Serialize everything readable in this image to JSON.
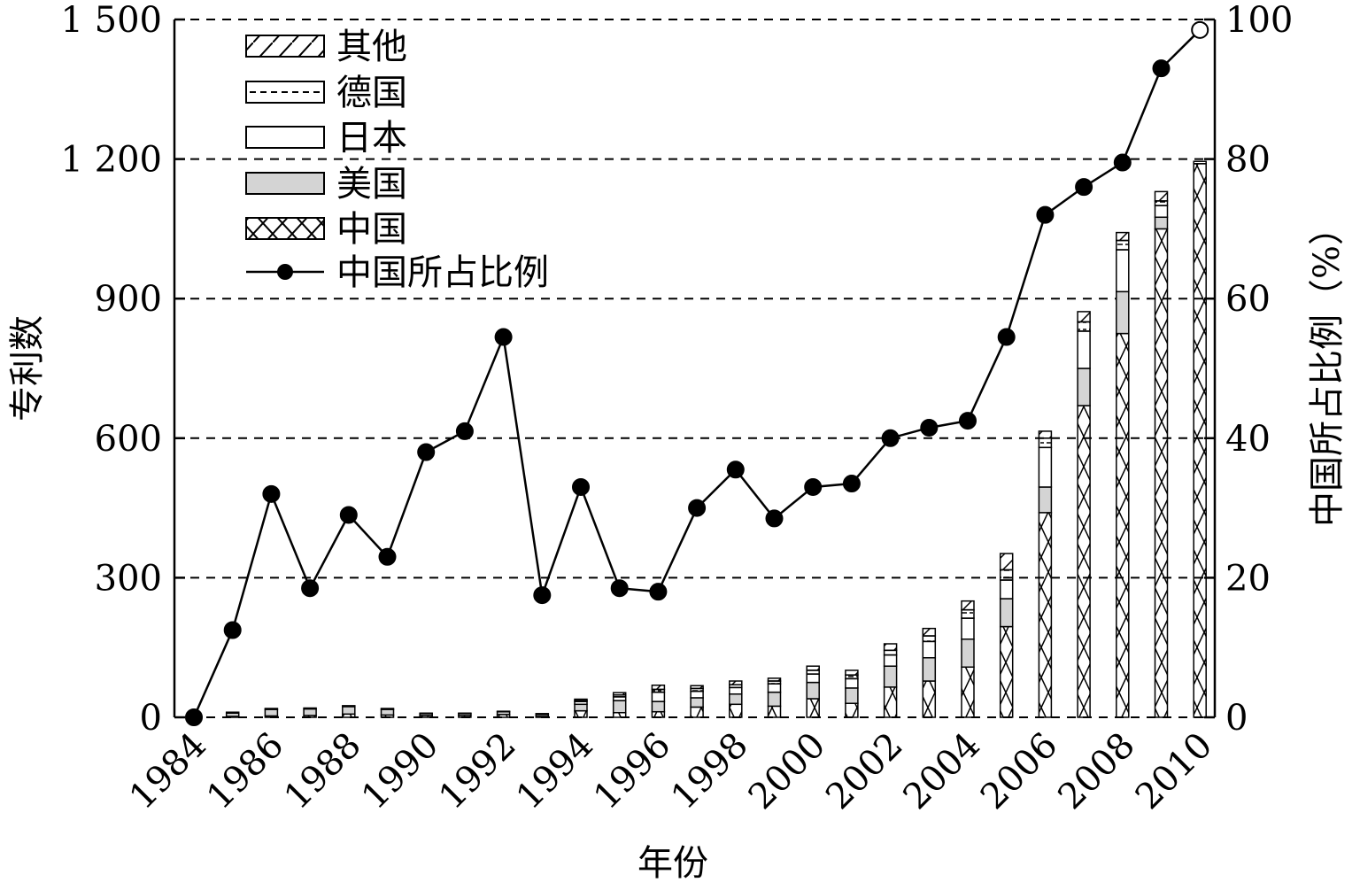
{
  "chart_data": {
    "type": "bar",
    "stacked": true,
    "x": [
      1984,
      1985,
      1986,
      1987,
      1988,
      1989,
      1990,
      1991,
      1992,
      1993,
      1994,
      1995,
      1996,
      1997,
      1998,
      1999,
      2000,
      2001,
      2002,
      2003,
      2004,
      2005,
      2006,
      2007,
      2008,
      2009,
      2010
    ],
    "x_tick_labels": [
      "1984",
      "1986",
      "1988",
      "1990",
      "1992",
      "1994",
      "1996",
      "1998",
      "2000",
      "2002",
      "2004",
      "2006",
      "2008",
      "2010"
    ],
    "xlabel": "年份",
    "ylabel": "专利数",
    "y2label": "中国所占比例（%）",
    "ylim": [
      0,
      1500
    ],
    "y2lim": [
      0,
      100
    ],
    "y_tick_labels": [
      "0",
      "300",
      "600",
      "900",
      "1 200",
      "1 500"
    ],
    "y2_tick_labels": [
      "0",
      "20",
      "40",
      "60",
      "80",
      "100"
    ],
    "grid": "horizontal dashed",
    "legend_position": "top-left",
    "series": [
      {
        "name": "中国",
        "pattern": "cross-hatch",
        "values": [
          0,
          2,
          3,
          4,
          7,
          5,
          4,
          4,
          6,
          2,
          14,
          10,
          12,
          22,
          28,
          24,
          40,
          30,
          65,
          78,
          108,
          195,
          440,
          670,
          825,
          1050,
          1190
        ]
      },
      {
        "name": "美国",
        "pattern": "gray-fill",
        "values": [
          0,
          7,
          14,
          14,
          16,
          12,
          4,
          4,
          6,
          4,
          14,
          26,
          22,
          20,
          22,
          30,
          35,
          33,
          45,
          50,
          60,
          60,
          55,
          80,
          90,
          25,
          0
        ]
      },
      {
        "name": "日本",
        "pattern": "empty",
        "values": [
          0,
          2,
          2,
          2,
          2,
          2,
          1,
          1,
          1,
          2,
          6,
          8,
          20,
          14,
          14,
          18,
          18,
          20,
          24,
          35,
          45,
          40,
          85,
          80,
          90,
          25,
          0
        ]
      },
      {
        "name": "德国",
        "pattern": "dashed",
        "values": [
          0,
          0,
          0,
          0,
          0,
          0,
          0,
          0,
          0,
          0,
          2,
          4,
          6,
          6,
          6,
          6,
          8,
          8,
          10,
          12,
          18,
          22,
          20,
          20,
          20,
          10,
          5
        ]
      },
      {
        "name": "其他",
        "pattern": "diagonal",
        "values": [
          0,
          0,
          0,
          0,
          0,
          0,
          0,
          0,
          0,
          0,
          3,
          5,
          9,
          6,
          8,
          6,
          9,
          10,
          14,
          16,
          19,
          35,
          15,
          22,
          17,
          20,
          0
        ]
      },
      {
        "name": "中国所占比例",
        "type": "line",
        "axis": "right",
        "values": [
          0,
          12.5,
          32,
          18.5,
          29,
          23,
          38,
          41,
          54.5,
          17.5,
          33,
          18.5,
          18,
          30,
          35.5,
          28.5,
          33,
          33.5,
          40,
          41.5,
          42.5,
          54.5,
          72,
          76,
          79.5,
          93,
          98.5
        ]
      }
    ],
    "legend": [
      "其他",
      "德国",
      "日本",
      "美国",
      "中国",
      "中国所占比例"
    ]
  }
}
